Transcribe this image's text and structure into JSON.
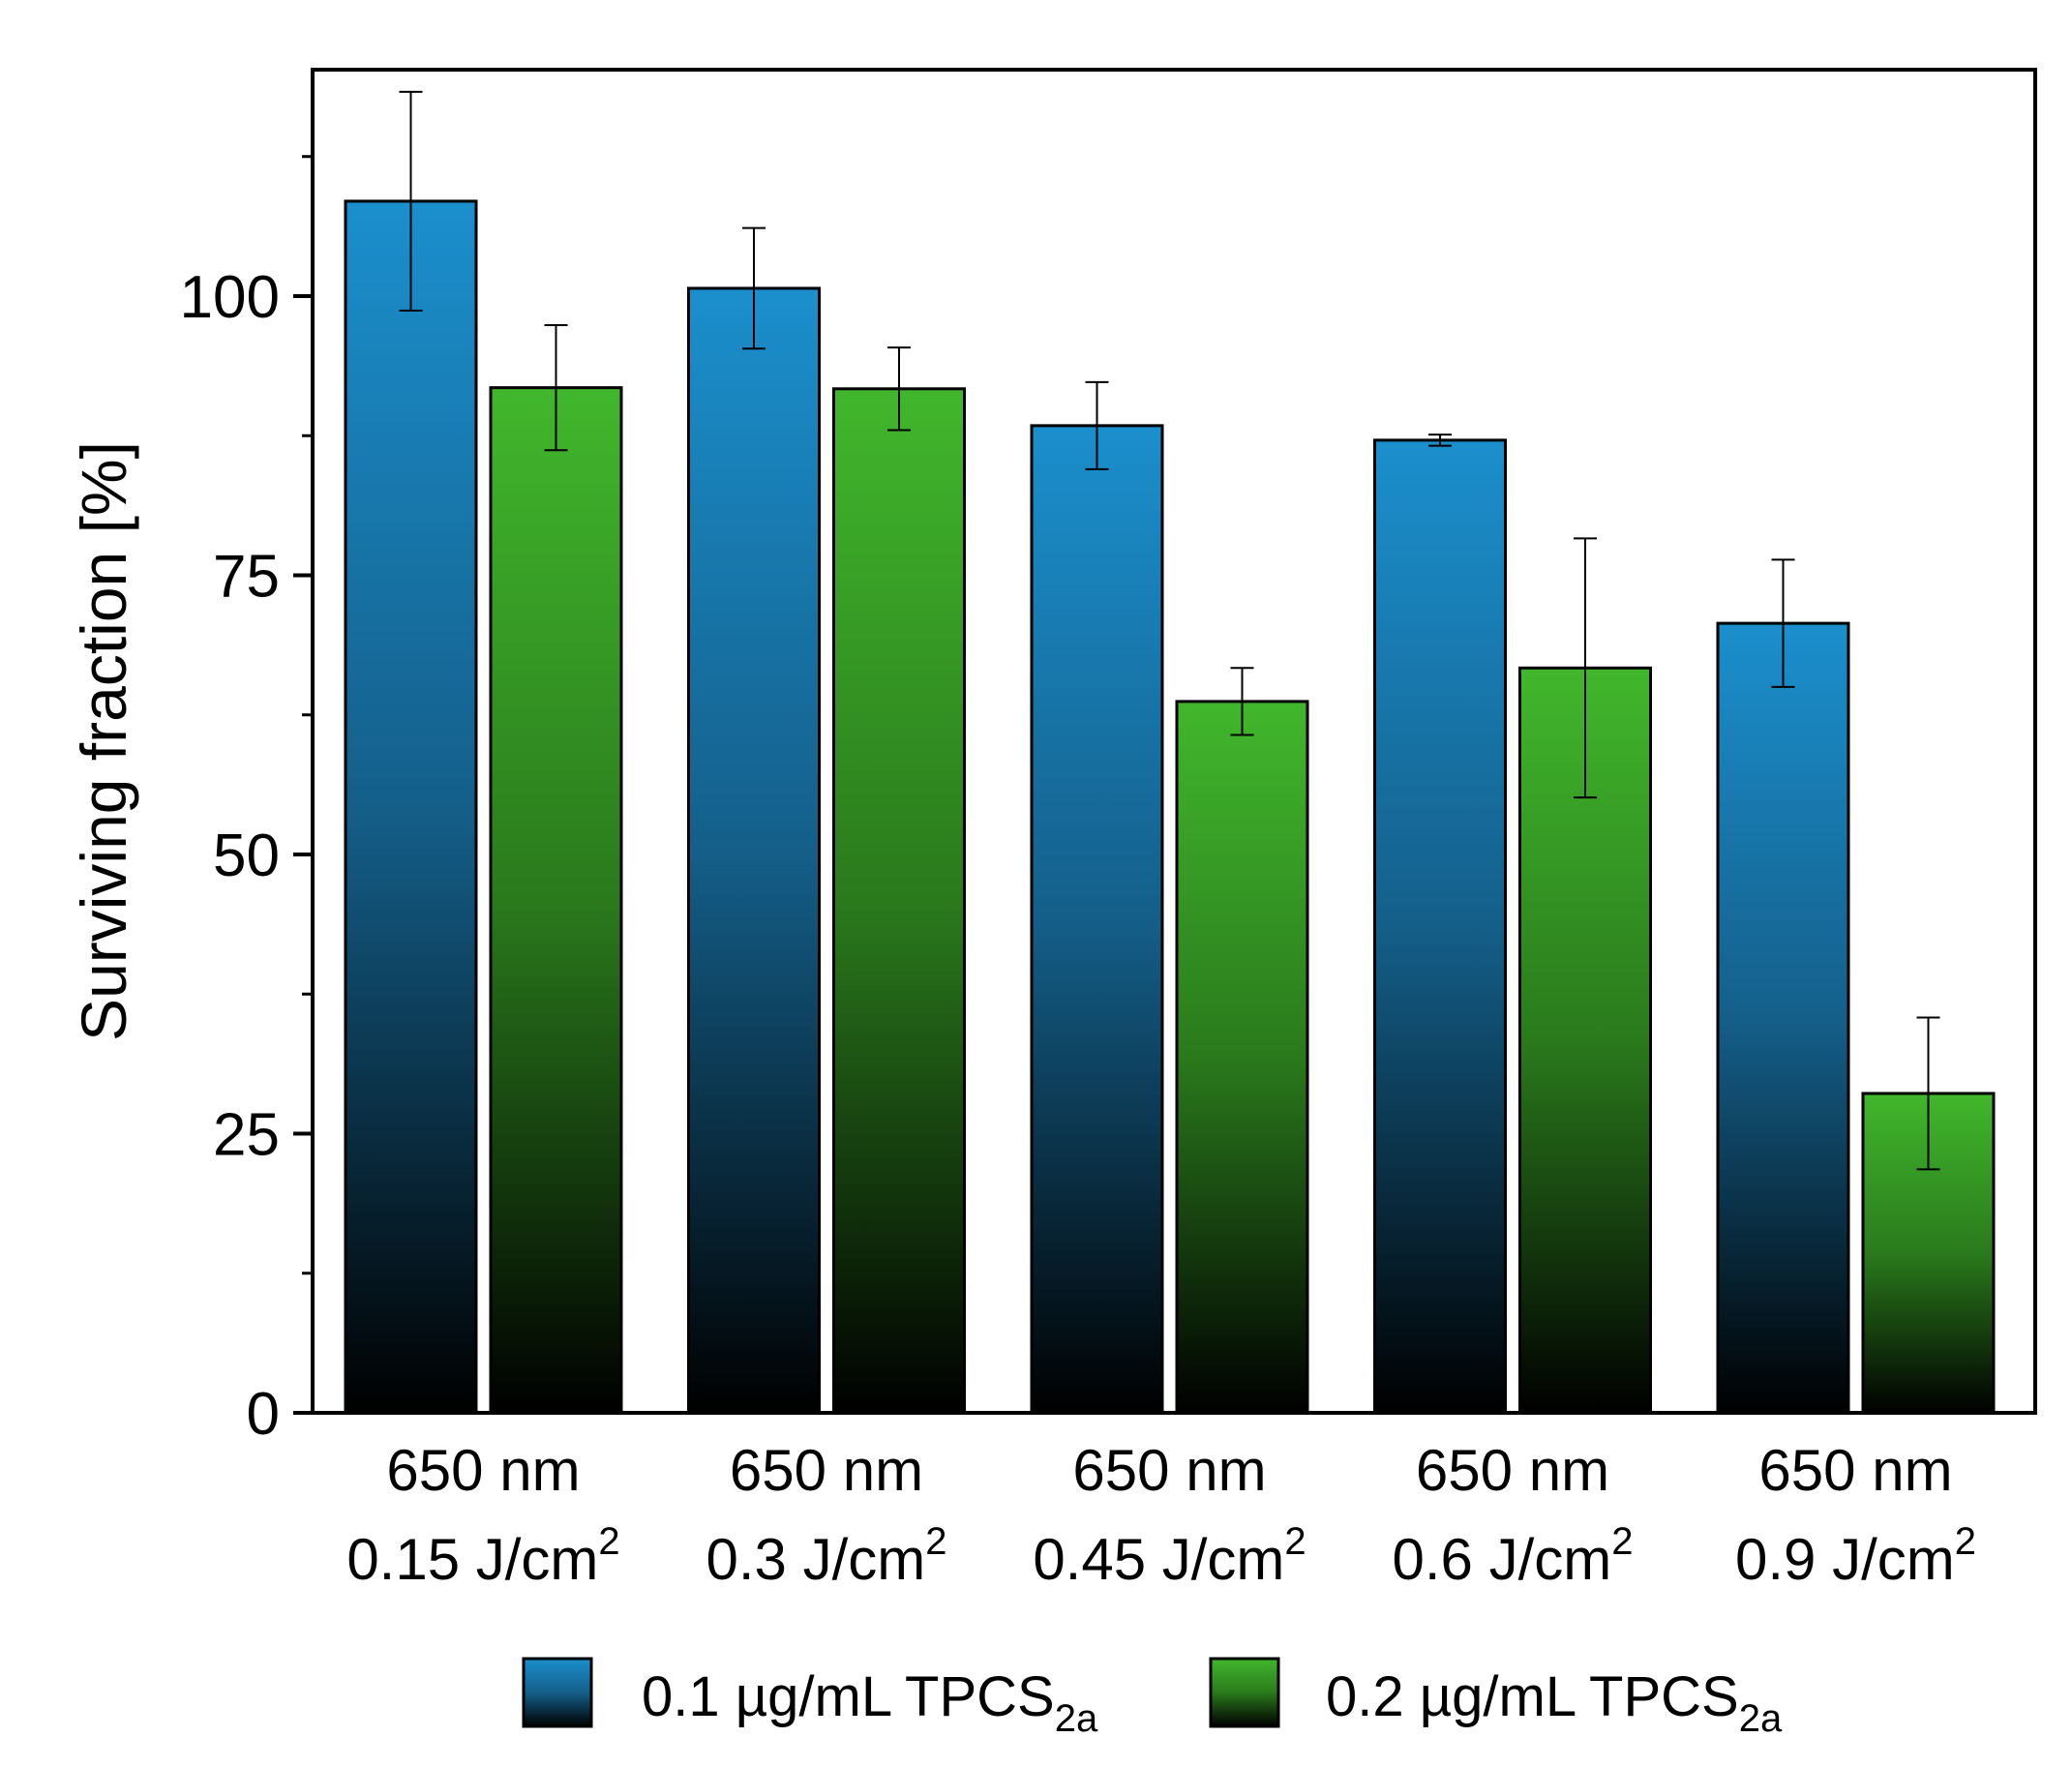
{
  "colors": {
    "series1_top": "#1b8fcd",
    "series1_bottom": "#000000",
    "series2_top": "#41b72c",
    "series2_bottom": "#000000",
    "axis": "#000000",
    "background": "#ffffff"
  },
  "chart_data": {
    "type": "bar",
    "title": "",
    "xlabel": "",
    "ylabel": "Surviving fraction [%]",
    "ylim": [
      0,
      120
    ],
    "yticks": [
      0,
      25,
      50,
      75,
      100
    ],
    "grid": false,
    "legend_position": "bottom",
    "categories": [
      {
        "line1": "650 nm",
        "dose": "0.15 J/cm",
        "sup": "2"
      },
      {
        "line1": "650 nm",
        "dose": "0.3 J/cm",
        "sup": "2"
      },
      {
        "line1": "650 nm",
        "dose": "0.45 J/cm",
        "sup": "2"
      },
      {
        "line1": "650 nm",
        "dose": "0.6 J/cm",
        "sup": "2"
      },
      {
        "line1": "650 nm",
        "dose": "0.9 J/cm",
        "sup": "2"
      }
    ],
    "series": [
      {
        "name": "0.1 µg/mL TPCS",
        "subscript": "2a",
        "values": [
          108.5,
          100.7,
          88.4,
          87.1,
          70.7
        ],
        "errors": [
          9.8,
          5.4,
          3.9,
          0.5,
          5.7
        ]
      },
      {
        "name": "0.2 µg/mL TPCS",
        "subscript": "2a",
        "values": [
          91.8,
          91.7,
          63.7,
          66.7,
          28.6
        ],
        "errors": [
          5.6,
          3.7,
          3.0,
          11.6,
          6.8
        ]
      }
    ]
  }
}
